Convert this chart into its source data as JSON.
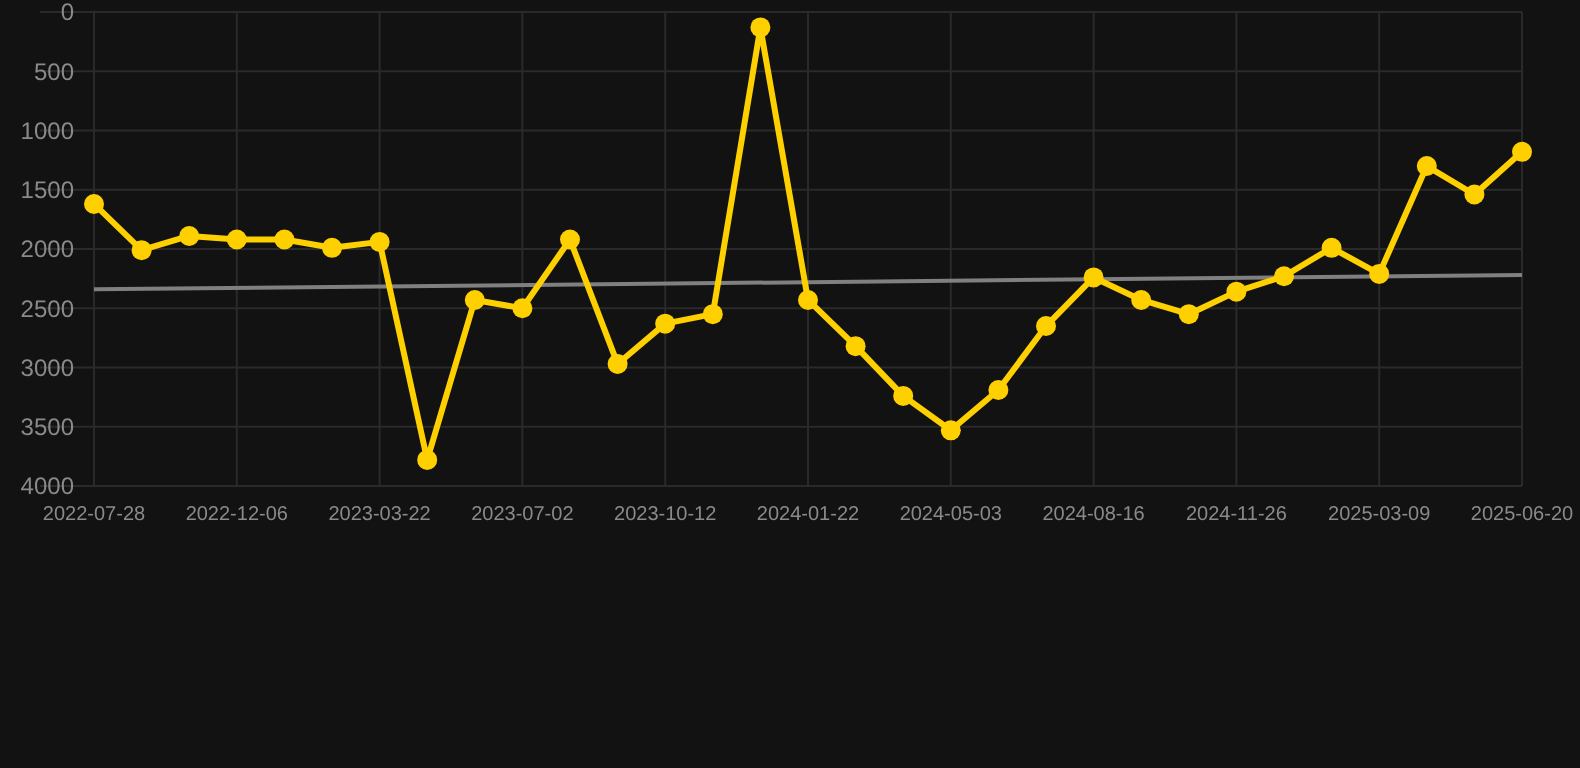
{
  "chart_data": {
    "type": "line",
    "categories": [
      "2022-07-28",
      null,
      null,
      "2022-12-06",
      null,
      null,
      "2023-03-22",
      null,
      null,
      "2023-07-02",
      null,
      null,
      "2023-10-12",
      null,
      null,
      "2024-01-22",
      null,
      null,
      "2024-05-03",
      null,
      null,
      "2024-08-16",
      null,
      null,
      "2024-11-26",
      null,
      null,
      "2025-03-09",
      null,
      null,
      "2025-06-20"
    ],
    "series": [
      {
        "color": "#ffd000",
        "marker": "circle",
        "values": [
          1620,
          2010,
          1890,
          1920,
          1920,
          1990,
          1940,
          3780,
          2430,
          2500,
          1920,
          2970,
          2630,
          2550,
          130,
          2430,
          2820,
          3240,
          3530,
          3190,
          2650,
          2240,
          2430,
          2550,
          2360,
          2230,
          1990,
          2210,
          1300,
          1540,
          1180
        ]
      },
      {
        "type": "line",
        "color": "#808080",
        "marker": "none",
        "values": [
          2340,
          null,
          null,
          null,
          null,
          null,
          null,
          null,
          null,
          null,
          null,
          null,
          null,
          null,
          null,
          null,
          null,
          null,
          null,
          null,
          null,
          null,
          null,
          null,
          null,
          null,
          null,
          null,
          null,
          null,
          2220
        ]
      }
    ],
    "ylim": [
      4000,
      0
    ],
    "yticks": [
      0,
      500,
      1000,
      1500,
      2000,
      2500,
      3000,
      3500,
      4000
    ],
    "grid": true
  }
}
